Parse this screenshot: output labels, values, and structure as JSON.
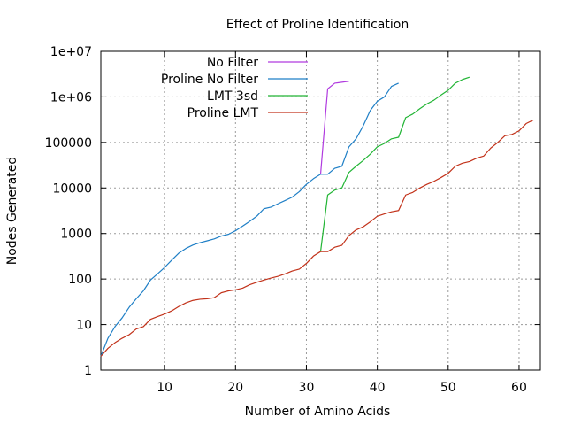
{
  "chart_data": {
    "type": "line",
    "title": "Effect of Proline Identification",
    "xlabel": "Number of Amino Acids",
    "ylabel": "Nodes Generated",
    "xlim": [
      1,
      63
    ],
    "ylim": [
      1,
      10000000
    ],
    "y_scale": "log",
    "grid": true,
    "legend_position": "top-left",
    "x_ticks": [
      10,
      20,
      30,
      40,
      50,
      60
    ],
    "x_tick_labels": [
      "10",
      "20",
      "30",
      "40",
      "50",
      "60"
    ],
    "y_ticks": [
      1,
      10,
      100,
      1000,
      10000,
      100000,
      1000000,
      10000000
    ],
    "y_tick_labels": [
      "1",
      "10",
      "100",
      "1000",
      "10000",
      "100000",
      "1e+06",
      "1e+07"
    ],
    "series": [
      {
        "name": "No Filter",
        "color": "#b03adf",
        "x": [
          32,
          33,
          34,
          35,
          36
        ],
        "y": [
          20000,
          1500000,
          2000000,
          2100000,
          2200000
        ]
      },
      {
        "name": "Proline No Filter",
        "color": "#1f7fc6",
        "x": [
          1,
          2,
          3,
          4,
          5,
          6,
          7,
          8,
          9,
          10,
          11,
          12,
          13,
          14,
          15,
          16,
          17,
          18,
          19,
          20,
          21,
          22,
          23,
          24,
          25,
          26,
          27,
          28,
          29,
          30,
          31,
          32,
          33,
          34,
          35,
          36,
          37,
          38,
          39,
          40,
          41,
          42,
          43
        ],
        "y": [
          2,
          5,
          9,
          14,
          24,
          37,
          55,
          95,
          130,
          180,
          260,
          370,
          470,
          560,
          630,
          690,
          760,
          880,
          960,
          1150,
          1450,
          1850,
          2400,
          3500,
          3800,
          4500,
          5300,
          6300,
          8300,
          12000,
          16000,
          20000,
          20000,
          27000,
          30000,
          80000,
          120000,
          230000,
          500000,
          800000,
          1000000,
          1700000,
          2000000
        ]
      },
      {
        "name": "LMT 3sd",
        "color": "#22b535",
        "x": [
          32,
          33,
          34,
          35,
          36,
          37,
          38,
          39,
          40,
          41,
          42,
          43,
          44,
          45,
          46,
          47,
          48,
          49,
          50,
          51,
          52,
          53
        ],
        "y": [
          400,
          7000,
          9000,
          10000,
          22000,
          30000,
          40000,
          55000,
          80000,
          95000,
          120000,
          130000,
          350000,
          420000,
          550000,
          700000,
          850000,
          1100000,
          1400000,
          2000000,
          2400000,
          2700000
        ]
      },
      {
        "name": "Proline LMT",
        "color": "#c2321a",
        "x": [
          1,
          2,
          3,
          4,
          5,
          6,
          7,
          8,
          9,
          10,
          11,
          12,
          13,
          14,
          15,
          16,
          17,
          18,
          19,
          20,
          21,
          22,
          23,
          24,
          25,
          26,
          27,
          28,
          29,
          30,
          31,
          32,
          33,
          34,
          35,
          36,
          37,
          38,
          39,
          40,
          41,
          42,
          43,
          44,
          45,
          46,
          47,
          48,
          49,
          50,
          51,
          52,
          53,
          54,
          55,
          56,
          57,
          58,
          59,
          60,
          61,
          62
        ],
        "y": [
          2,
          3,
          4,
          5,
          6,
          8,
          9,
          13,
          15,
          17,
          20,
          25,
          30,
          34,
          36,
          37,
          39,
          50,
          55,
          58,
          63,
          75,
          85,
          95,
          105,
          115,
          130,
          150,
          165,
          220,
          320,
          400,
          400,
          500,
          550,
          900,
          1200,
          1400,
          1800,
          2400,
          2700,
          3000,
          3200,
          7000,
          8000,
          10000,
          12000,
          14000,
          17000,
          21000,
          30000,
          35000,
          38000,
          45000,
          50000,
          75000,
          100000,
          140000,
          150000,
          180000,
          260000,
          310000
        ]
      }
    ]
  }
}
